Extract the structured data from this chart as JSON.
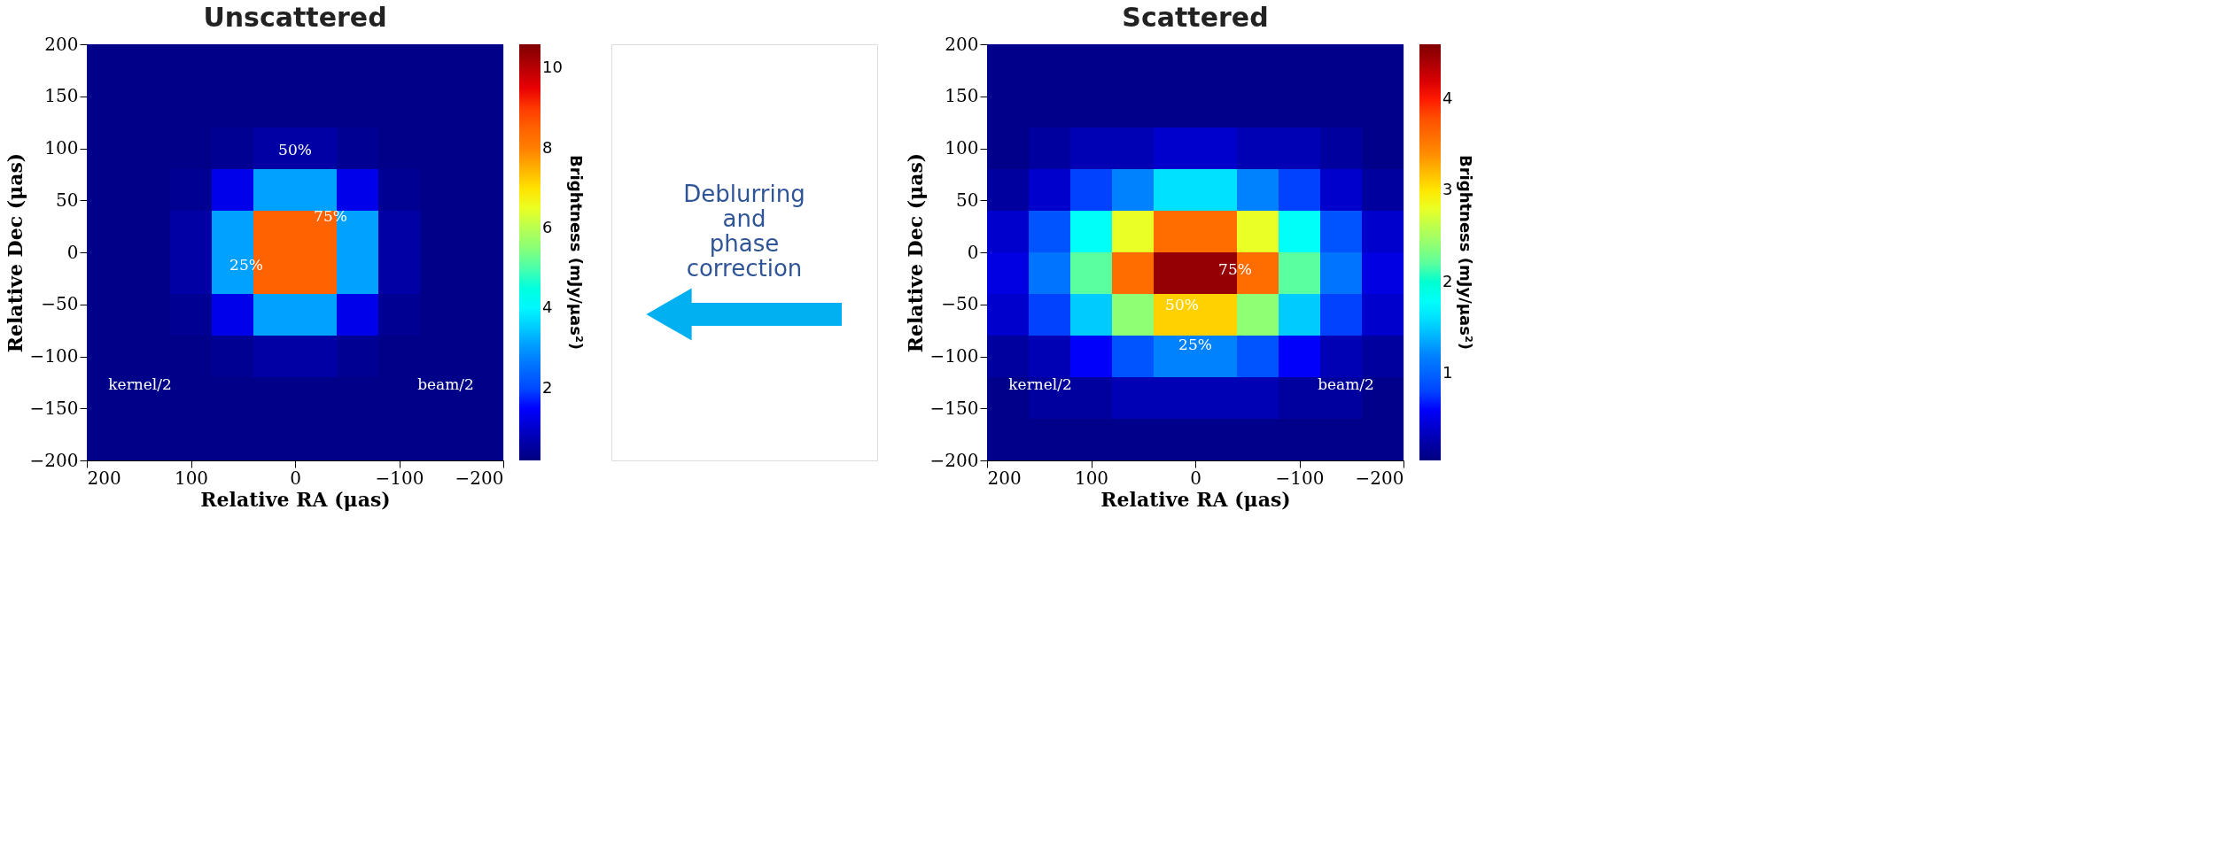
{
  "chart_data": [
    {
      "type": "heatmap",
      "title": "Unscattered",
      "xlabel": "Relative RA (μas)",
      "ylabel": "Relative Dec (μas)",
      "clabel": "Brightness (mJy/μas²)",
      "x": [
        180,
        140,
        100,
        60,
        20,
        -20,
        -60,
        -100,
        -140,
        -180
      ],
      "xlim": [
        200,
        -200
      ],
      "ylim": [
        -200,
        200
      ],
      "xticks": [
        200,
        100,
        0,
        -100,
        -200
      ],
      "yticks": [
        -200,
        -150,
        -100,
        -50,
        0,
        50,
        100,
        150,
        200
      ],
      "clim": [
        0.2,
        10.6
      ],
      "cticks": [
        2,
        4,
        6,
        8,
        10
      ],
      "cells": [
        [
          0.3,
          0.3,
          0.3,
          0.3,
          0.3,
          0.3,
          0.3,
          0.3,
          0.3,
          0.3
        ],
        [
          0.3,
          0.3,
          0.3,
          0.3,
          0.3,
          0.3,
          0.3,
          0.3,
          0.3,
          0.3
        ],
        [
          0.3,
          0.3,
          0.3,
          0.4,
          0.6,
          0.6,
          0.4,
          0.3,
          0.3,
          0.3
        ],
        [
          0.3,
          0.3,
          0.4,
          1.3,
          3.1,
          3.1,
          1.3,
          0.4,
          0.3,
          0.3
        ],
        [
          0.3,
          0.3,
          0.6,
          3.1,
          8.5,
          8.5,
          3.1,
          0.6,
          0.3,
          0.3
        ],
        [
          0.3,
          0.3,
          0.6,
          3.1,
          8.5,
          8.5,
          3.1,
          0.6,
          0.3,
          0.3
        ],
        [
          0.3,
          0.3,
          0.4,
          1.3,
          3.1,
          3.1,
          1.3,
          0.4,
          0.3,
          0.3
        ],
        [
          0.3,
          0.3,
          0.3,
          0.4,
          0.6,
          0.6,
          0.4,
          0.3,
          0.3,
          0.3
        ],
        [
          0.3,
          0.3,
          0.3,
          0.3,
          0.3,
          0.3,
          0.3,
          0.3,
          0.3,
          0.3
        ],
        [
          0.3,
          0.3,
          0.3,
          0.3,
          0.3,
          0.3,
          0.3,
          0.3,
          0.3,
          0.3
        ]
      ],
      "annotations": [
        "50%",
        "75%",
        "25%",
        "kernel/2",
        "beam/2"
      ]
    },
    {
      "type": "other",
      "annotations": [
        "Deblurring and phase correction"
      ]
    },
    {
      "type": "heatmap",
      "title": "Scattered",
      "xlabel": "Relative RA (μas)",
      "ylabel": "Relative Dec (μas)",
      "clabel": "Brightness (mJy/μas²)",
      "x": [
        180,
        140,
        100,
        60,
        20,
        -20,
        -60,
        -100,
        -140,
        -180
      ],
      "xlim": [
        200,
        -200
      ],
      "ylim": [
        -200,
        200
      ],
      "xticks": [
        200,
        100,
        0,
        -100,
        -200
      ],
      "yticks": [
        -200,
        -150,
        -100,
        -50,
        0,
        50,
        100,
        150,
        200
      ],
      "clim": [
        0.05,
        4.6
      ],
      "cticks": [
        1,
        2,
        3,
        4
      ],
      "cells": [
        [
          0.1,
          0.1,
          0.1,
          0.1,
          0.1,
          0.1,
          0.1,
          0.1,
          0.1,
          0.1
        ],
        [
          0.1,
          0.1,
          0.1,
          0.1,
          0.1,
          0.1,
          0.1,
          0.1,
          0.1,
          0.1
        ],
        [
          0.1,
          0.2,
          0.3,
          0.3,
          0.4,
          0.4,
          0.3,
          0.3,
          0.2,
          0.1
        ],
        [
          0.2,
          0.4,
          0.8,
          1.2,
          1.6,
          1.6,
          1.2,
          0.8,
          0.4,
          0.2
        ],
        [
          0.4,
          0.9,
          1.8,
          2.8,
          3.6,
          3.6,
          2.8,
          1.8,
          0.9,
          0.4
        ],
        [
          0.5,
          1.1,
          2.2,
          3.6,
          4.5,
          4.5,
          3.6,
          2.2,
          1.1,
          0.5
        ],
        [
          0.4,
          0.8,
          1.5,
          2.4,
          3.1,
          3.1,
          2.4,
          1.5,
          0.8,
          0.4
        ],
        [
          0.2,
          0.3,
          0.6,
          0.9,
          1.2,
          1.2,
          0.9,
          0.6,
          0.3,
          0.2
        ],
        [
          0.1,
          0.2,
          0.2,
          0.3,
          0.3,
          0.3,
          0.3,
          0.2,
          0.2,
          0.1
        ],
        [
          0.1,
          0.1,
          0.1,
          0.1,
          0.1,
          0.1,
          0.1,
          0.1,
          0.1,
          0.1
        ]
      ],
      "annotations": [
        "75%",
        "50%",
        "25%",
        "kernel/2",
        "beam/2"
      ]
    }
  ]
}
